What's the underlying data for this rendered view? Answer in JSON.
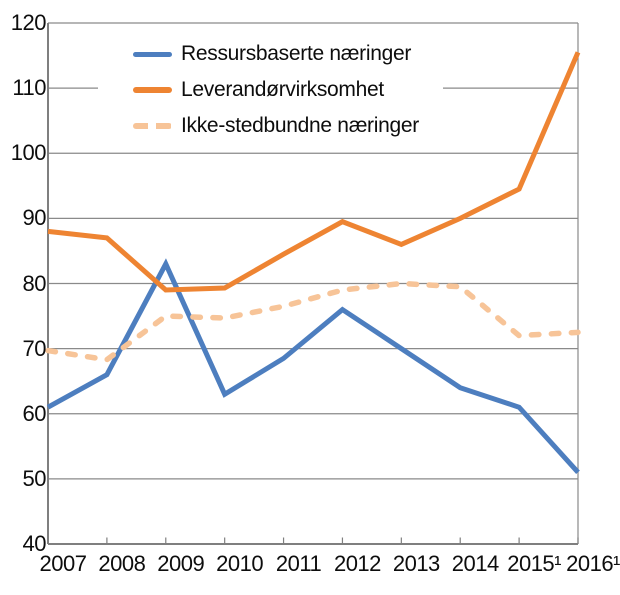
{
  "chart_data": {
    "type": "line",
    "title": "",
    "xlabel": "",
    "ylabel": "",
    "categories": [
      "2007",
      "2008",
      "2009",
      "2010",
      "2011",
      "2012",
      "2013",
      "2014",
      "2015¹",
      "2016¹"
    ],
    "y_ticks": [
      40,
      50,
      60,
      70,
      80,
      90,
      100,
      110,
      120
    ],
    "ylim": [
      40,
      120
    ],
    "grid": "horizontal",
    "legend_position": "top-left-inside",
    "series": [
      {
        "name": "Ressursbaserte næringer",
        "style": "solid",
        "color": "#4d7ebf",
        "values": [
          61,
          66,
          83,
          63,
          68.5,
          76,
          70,
          64,
          61,
          51
        ]
      },
      {
        "name": "Leverandørvirksomhet",
        "style": "solid",
        "color": "#ee8432",
        "values": [
          88,
          87,
          79,
          79.3,
          84.5,
          89.5,
          86,
          90,
          94.5,
          115.5
        ]
      },
      {
        "name": "Ikke-stedbundne næringer",
        "style": "dashed",
        "color": "#f7c498",
        "values": [
          69.7,
          68.3,
          75,
          74.7,
          76.5,
          79,
          80,
          79.5,
          72,
          72.5
        ]
      }
    ],
    "colors": {
      "axis": "#7f7f7f",
      "grid": "#8a8a8a",
      "text": "#0d0d0d",
      "background": "#ffffff"
    }
  }
}
